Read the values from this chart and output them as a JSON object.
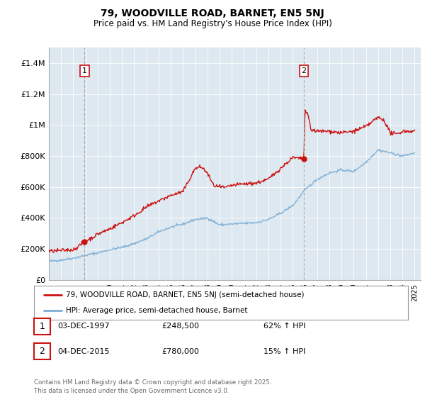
{
  "title_line1": "79, WOODVILLE ROAD, BARNET, EN5 5NJ",
  "title_line2": "Price paid vs. HM Land Registry's House Price Index (HPI)",
  "ylim": [
    0,
    1500000
  ],
  "yticks": [
    0,
    200000,
    400000,
    600000,
    800000,
    1000000,
    1200000,
    1400000
  ],
  "ytick_labels": [
    "£0",
    "£200K",
    "£400K",
    "£600K",
    "£800K",
    "£1M",
    "£1.2M",
    "£1.4M"
  ],
  "legend_line1": "79, WOODVILLE ROAD, BARNET, EN5 5NJ (semi-detached house)",
  "legend_line2": "HPI: Average price, semi-detached house, Barnet",
  "sale1_date": "03-DEC-1997",
  "sale1_price": 248500,
  "sale1_label": "62% ↑ HPI",
  "sale1_x": 1997.92,
  "sale2_date": "04-DEC-2015",
  "sale2_price": 780000,
  "sale2_label": "15% ↑ HPI",
  "sale2_x": 2015.92,
  "footnote": "Contains HM Land Registry data © Crown copyright and database right 2025.\nThis data is licensed under the Open Government Licence v3.0.",
  "hpi_color": "#7dadd4",
  "price_color": "#cc1111",
  "vline_color": "#aaaaaa",
  "background_color": "#ffffff",
  "plot_bg_color": "#dde8f0",
  "grid_color": "#ffffff"
}
